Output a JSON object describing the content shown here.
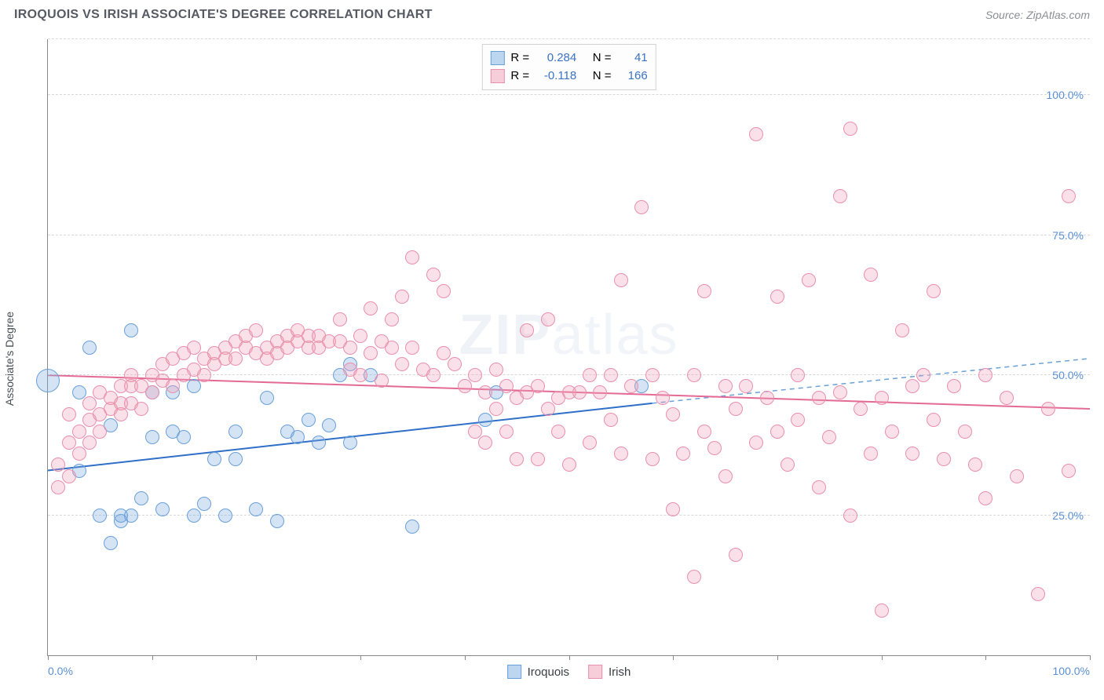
{
  "title": "IROQUOIS VS IRISH ASSOCIATE'S DEGREE CORRELATION CHART",
  "source_label": "Source: ZipAtlas.com",
  "watermark": {
    "bold": "ZIP",
    "light": "atlas"
  },
  "ylabel": "Associate's Degree",
  "chart": {
    "type": "scatter",
    "background_color": "#ffffff",
    "grid_color": "#d6d8dc",
    "axis_color": "#888888",
    "xlim": [
      0,
      100
    ],
    "ylim": [
      0,
      110
    ],
    "x_ticks": [
      0,
      10,
      20,
      30,
      40,
      50,
      60,
      70,
      80,
      90,
      100
    ],
    "x_tick_labels_shown": {
      "0": "0.0%",
      "100": "100.0%"
    },
    "y_gridlines": [
      25,
      50,
      75,
      100,
      110
    ],
    "y_tick_labels": {
      "25": "25.0%",
      "50": "50.0%",
      "75": "75.0%",
      "100": "100.0%"
    },
    "label_color": "#5b8fd6",
    "label_fontsize": 14,
    "point_radius": 9,
    "point_border_width": 1.5,
    "series": [
      {
        "name": "Iroquois",
        "fill": "rgba(120,170,225,0.32)",
        "stroke": "#6aa0d8",
        "swatch_fill": "#bcd6f0",
        "swatch_border": "#6aa0d8",
        "stats": {
          "R": "0.284",
          "N": "41"
        },
        "trend": {
          "solid": {
            "x1": 0,
            "y1": 33,
            "x2": 58,
            "y2": 45,
            "color": "#2f6fc7",
            "width": 2
          },
          "dashed": {
            "x1": 58,
            "y1": 45,
            "x2": 100,
            "y2": 53,
            "color": "#6aa0d8",
            "width": 1.5
          }
        },
        "points": [
          {
            "x": 0,
            "y": 49,
            "r": 15
          },
          {
            "x": 3,
            "y": 47
          },
          {
            "x": 3,
            "y": 33
          },
          {
            "x": 4,
            "y": 55
          },
          {
            "x": 5,
            "y": 25
          },
          {
            "x": 6,
            "y": 20
          },
          {
            "x": 6,
            "y": 41
          },
          {
            "x": 7,
            "y": 24
          },
          {
            "x": 7,
            "y": 25
          },
          {
            "x": 8,
            "y": 25
          },
          {
            "x": 8,
            "y": 58
          },
          {
            "x": 9,
            "y": 28
          },
          {
            "x": 10,
            "y": 39
          },
          {
            "x": 10,
            "y": 47
          },
          {
            "x": 11,
            "y": 26
          },
          {
            "x": 12,
            "y": 40
          },
          {
            "x": 12,
            "y": 47
          },
          {
            "x": 13,
            "y": 39
          },
          {
            "x": 14,
            "y": 25
          },
          {
            "x": 14,
            "y": 48
          },
          {
            "x": 15,
            "y": 27
          },
          {
            "x": 16,
            "y": 35
          },
          {
            "x": 17,
            "y": 25
          },
          {
            "x": 18,
            "y": 40
          },
          {
            "x": 18,
            "y": 35
          },
          {
            "x": 20,
            "y": 26
          },
          {
            "x": 21,
            "y": 46
          },
          {
            "x": 22,
            "y": 24
          },
          {
            "x": 23,
            "y": 40
          },
          {
            "x": 24,
            "y": 39
          },
          {
            "x": 25,
            "y": 42
          },
          {
            "x": 26,
            "y": 38
          },
          {
            "x": 27,
            "y": 41
          },
          {
            "x": 28,
            "y": 50
          },
          {
            "x": 29,
            "y": 38
          },
          {
            "x": 29,
            "y": 52
          },
          {
            "x": 31,
            "y": 50
          },
          {
            "x": 35,
            "y": 23
          },
          {
            "x": 42,
            "y": 42
          },
          {
            "x": 43,
            "y": 47
          },
          {
            "x": 57,
            "y": 48
          }
        ]
      },
      {
        "name": "Irish",
        "fill": "rgba(240,160,185,0.32)",
        "stroke": "#e890ac",
        "swatch_fill": "#f7cdd9",
        "swatch_border": "#e890ac",
        "stats": {
          "R": "-0.118",
          "N": "166"
        },
        "trend": {
          "solid": {
            "x1": 0,
            "y1": 50,
            "x2": 100,
            "y2": 44,
            "color": "#e36a95",
            "width": 2
          }
        },
        "points": [
          {
            "x": 1,
            "y": 30
          },
          {
            "x": 1,
            "y": 34
          },
          {
            "x": 2,
            "y": 38
          },
          {
            "x": 2,
            "y": 32
          },
          {
            "x": 2,
            "y": 43
          },
          {
            "x": 3,
            "y": 36
          },
          {
            "x": 3,
            "y": 40
          },
          {
            "x": 4,
            "y": 42
          },
          {
            "x": 4,
            "y": 38
          },
          {
            "x": 4,
            "y": 45
          },
          {
            "x": 5,
            "y": 43
          },
          {
            "x": 5,
            "y": 47
          },
          {
            "x": 5,
            "y": 40
          },
          {
            "x": 6,
            "y": 44
          },
          {
            "x": 6,
            "y": 46
          },
          {
            "x": 7,
            "y": 45
          },
          {
            "x": 7,
            "y": 48
          },
          {
            "x": 7,
            "y": 43
          },
          {
            "x": 8,
            "y": 48
          },
          {
            "x": 8,
            "y": 50
          },
          {
            "x": 8,
            "y": 45
          },
          {
            "x": 9,
            "y": 44
          },
          {
            "x": 9,
            "y": 48
          },
          {
            "x": 10,
            "y": 50
          },
          {
            "x": 10,
            "y": 47
          },
          {
            "x": 11,
            "y": 49
          },
          {
            "x": 11,
            "y": 52
          },
          {
            "x": 12,
            "y": 48
          },
          {
            "x": 12,
            "y": 53
          },
          {
            "x": 13,
            "y": 50
          },
          {
            "x": 13,
            "y": 54
          },
          {
            "x": 14,
            "y": 51
          },
          {
            "x": 14,
            "y": 55
          },
          {
            "x": 15,
            "y": 50
          },
          {
            "x": 15,
            "y": 53
          },
          {
            "x": 16,
            "y": 54
          },
          {
            "x": 16,
            "y": 52
          },
          {
            "x": 17,
            "y": 55
          },
          {
            "x": 17,
            "y": 53
          },
          {
            "x": 18,
            "y": 56
          },
          {
            "x": 18,
            "y": 53
          },
          {
            "x": 19,
            "y": 55
          },
          {
            "x": 19,
            "y": 57
          },
          {
            "x": 20,
            "y": 54
          },
          {
            "x": 20,
            "y": 58
          },
          {
            "x": 21,
            "y": 55
          },
          {
            "x": 21,
            "y": 53
          },
          {
            "x": 22,
            "y": 56
          },
          {
            "x": 22,
            "y": 54
          },
          {
            "x": 23,
            "y": 57
          },
          {
            "x": 23,
            "y": 55
          },
          {
            "x": 24,
            "y": 56
          },
          {
            "x": 24,
            "y": 58
          },
          {
            "x": 25,
            "y": 55
          },
          {
            "x": 25,
            "y": 57
          },
          {
            "x": 26,
            "y": 57
          },
          {
            "x": 26,
            "y": 55
          },
          {
            "x": 27,
            "y": 56
          },
          {
            "x": 28,
            "y": 56
          },
          {
            "x": 28,
            "y": 60
          },
          {
            "x": 29,
            "y": 55
          },
          {
            "x": 29,
            "y": 51
          },
          {
            "x": 30,
            "y": 57
          },
          {
            "x": 30,
            "y": 50
          },
          {
            "x": 31,
            "y": 62
          },
          {
            "x": 31,
            "y": 54
          },
          {
            "x": 32,
            "y": 56
          },
          {
            "x": 32,
            "y": 49
          },
          {
            "x": 33,
            "y": 60
          },
          {
            "x": 33,
            "y": 55
          },
          {
            "x": 34,
            "y": 64
          },
          {
            "x": 34,
            "y": 52
          },
          {
            "x": 35,
            "y": 71
          },
          {
            "x": 35,
            "y": 55
          },
          {
            "x": 36,
            "y": 51
          },
          {
            "x": 37,
            "y": 68
          },
          {
            "x": 37,
            "y": 50
          },
          {
            "x": 38,
            "y": 65
          },
          {
            "x": 38,
            "y": 54
          },
          {
            "x": 39,
            "y": 52
          },
          {
            "x": 40,
            "y": 48
          },
          {
            "x": 41,
            "y": 50
          },
          {
            "x": 41,
            "y": 40
          },
          {
            "x": 42,
            "y": 47
          },
          {
            "x": 42,
            "y": 38
          },
          {
            "x": 43,
            "y": 51
          },
          {
            "x": 43,
            "y": 44
          },
          {
            "x": 44,
            "y": 48
          },
          {
            "x": 44,
            "y": 40
          },
          {
            "x": 45,
            "y": 46
          },
          {
            "x": 45,
            "y": 35
          },
          {
            "x": 46,
            "y": 47
          },
          {
            "x": 46,
            "y": 58
          },
          {
            "x": 47,
            "y": 48
          },
          {
            "x": 47,
            "y": 35
          },
          {
            "x": 48,
            "y": 44
          },
          {
            "x": 48,
            "y": 60
          },
          {
            "x": 49,
            "y": 46
          },
          {
            "x": 49,
            "y": 40
          },
          {
            "x": 50,
            "y": 47
          },
          {
            "x": 50,
            "y": 34
          },
          {
            "x": 51,
            "y": 47
          },
          {
            "x": 52,
            "y": 50
          },
          {
            "x": 52,
            "y": 38
          },
          {
            "x": 53,
            "y": 47
          },
          {
            "x": 54,
            "y": 42
          },
          {
            "x": 54,
            "y": 50
          },
          {
            "x": 55,
            "y": 36
          },
          {
            "x": 55,
            "y": 67
          },
          {
            "x": 56,
            "y": 48
          },
          {
            "x": 57,
            "y": 80
          },
          {
            "x": 58,
            "y": 35
          },
          {
            "x": 58,
            "y": 50
          },
          {
            "x": 59,
            "y": 46
          },
          {
            "x": 60,
            "y": 26
          },
          {
            "x": 60,
            "y": 43
          },
          {
            "x": 61,
            "y": 36
          },
          {
            "x": 62,
            "y": 14
          },
          {
            "x": 62,
            "y": 50
          },
          {
            "x": 63,
            "y": 65
          },
          {
            "x": 63,
            "y": 40
          },
          {
            "x": 64,
            "y": 37
          },
          {
            "x": 65,
            "y": 48
          },
          {
            "x": 65,
            "y": 32
          },
          {
            "x": 66,
            "y": 44
          },
          {
            "x": 66,
            "y": 18
          },
          {
            "x": 67,
            "y": 48
          },
          {
            "x": 68,
            "y": 38
          },
          {
            "x": 68,
            "y": 93
          },
          {
            "x": 69,
            "y": 46
          },
          {
            "x": 70,
            "y": 40
          },
          {
            "x": 70,
            "y": 64
          },
          {
            "x": 71,
            "y": 34
          },
          {
            "x": 72,
            "y": 50
          },
          {
            "x": 72,
            "y": 42
          },
          {
            "x": 73,
            "y": 67
          },
          {
            "x": 74,
            "y": 30
          },
          {
            "x": 74,
            "y": 46
          },
          {
            "x": 75,
            "y": 39
          },
          {
            "x": 76,
            "y": 82
          },
          {
            "x": 76,
            "y": 47
          },
          {
            "x": 77,
            "y": 94
          },
          {
            "x": 77,
            "y": 25
          },
          {
            "x": 78,
            "y": 44
          },
          {
            "x": 79,
            "y": 36
          },
          {
            "x": 79,
            "y": 68
          },
          {
            "x": 80,
            "y": 46
          },
          {
            "x": 80,
            "y": 8
          },
          {
            "x": 81,
            "y": 40
          },
          {
            "x": 82,
            "y": 58
          },
          {
            "x": 83,
            "y": 36
          },
          {
            "x": 83,
            "y": 48
          },
          {
            "x": 84,
            "y": 50
          },
          {
            "x": 85,
            "y": 42
          },
          {
            "x": 85,
            "y": 65
          },
          {
            "x": 86,
            "y": 35
          },
          {
            "x": 87,
            "y": 48
          },
          {
            "x": 88,
            "y": 40
          },
          {
            "x": 89,
            "y": 34
          },
          {
            "x": 90,
            "y": 50
          },
          {
            "x": 90,
            "y": 28
          },
          {
            "x": 92,
            "y": 46
          },
          {
            "x": 93,
            "y": 32
          },
          {
            "x": 95,
            "y": 11
          },
          {
            "x": 96,
            "y": 44
          },
          {
            "x": 98,
            "y": 82
          },
          {
            "x": 98,
            "y": 33
          }
        ]
      }
    ]
  }
}
